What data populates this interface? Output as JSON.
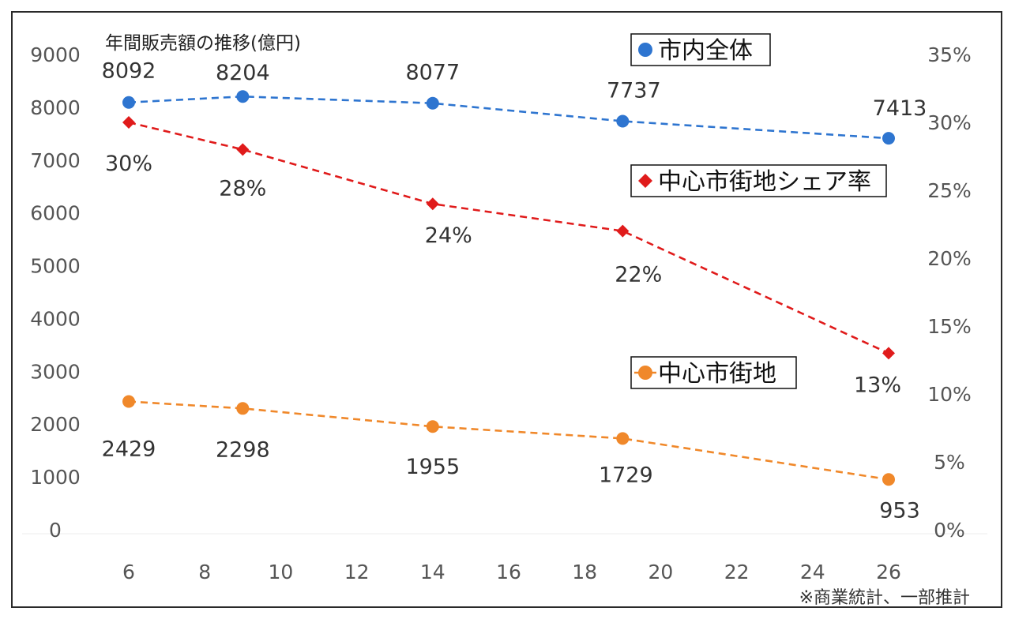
{
  "chart_data": {
    "type": "line",
    "title": "年間販売額の推移(億円)",
    "x": [
      6,
      9,
      14,
      19,
      26
    ],
    "x_ticks": [
      "6",
      "8",
      "10",
      "12",
      "14",
      "16",
      "18",
      "20",
      "22",
      "24",
      "26"
    ],
    "xlim": [
      6,
      26
    ],
    "y_left": {
      "range": [
        0,
        9000
      ],
      "ticks": [
        "0",
        "1000",
        "2000",
        "3000",
        "4000",
        "5000",
        "6000",
        "7000",
        "8000",
        "9000"
      ]
    },
    "y_right": {
      "range": [
        0,
        35
      ],
      "ticks": [
        "0%",
        "5%",
        "10%",
        "15%",
        "20%",
        "25%",
        "30%",
        "35%"
      ]
    },
    "series": [
      {
        "name": "市内全体",
        "axis": "left",
        "marker": "circle",
        "color": "#2e75d0",
        "values": [
          8092,
          8204,
          8077,
          7737,
          7413
        ],
        "labels": [
          "8092",
          "8204",
          "8077",
          "7737",
          "7413"
        ]
      },
      {
        "name": "中心市街地シェア率",
        "axis": "right",
        "marker": "diamond",
        "color": "#e01b1b",
        "values": [
          30,
          28,
          24,
          22,
          13
        ],
        "labels": [
          "30%",
          "28%",
          "24%",
          "22%",
          "13%"
        ]
      },
      {
        "name": "中心市街地",
        "axis": "left",
        "marker": "circle",
        "color": "#f0882a",
        "values": [
          2429,
          2298,
          1955,
          1729,
          953
        ],
        "labels": [
          "2429",
          "2298",
          "1955",
          "1729",
          "953"
        ]
      }
    ],
    "note": "※商業統計、一部推計",
    "grid": false
  }
}
